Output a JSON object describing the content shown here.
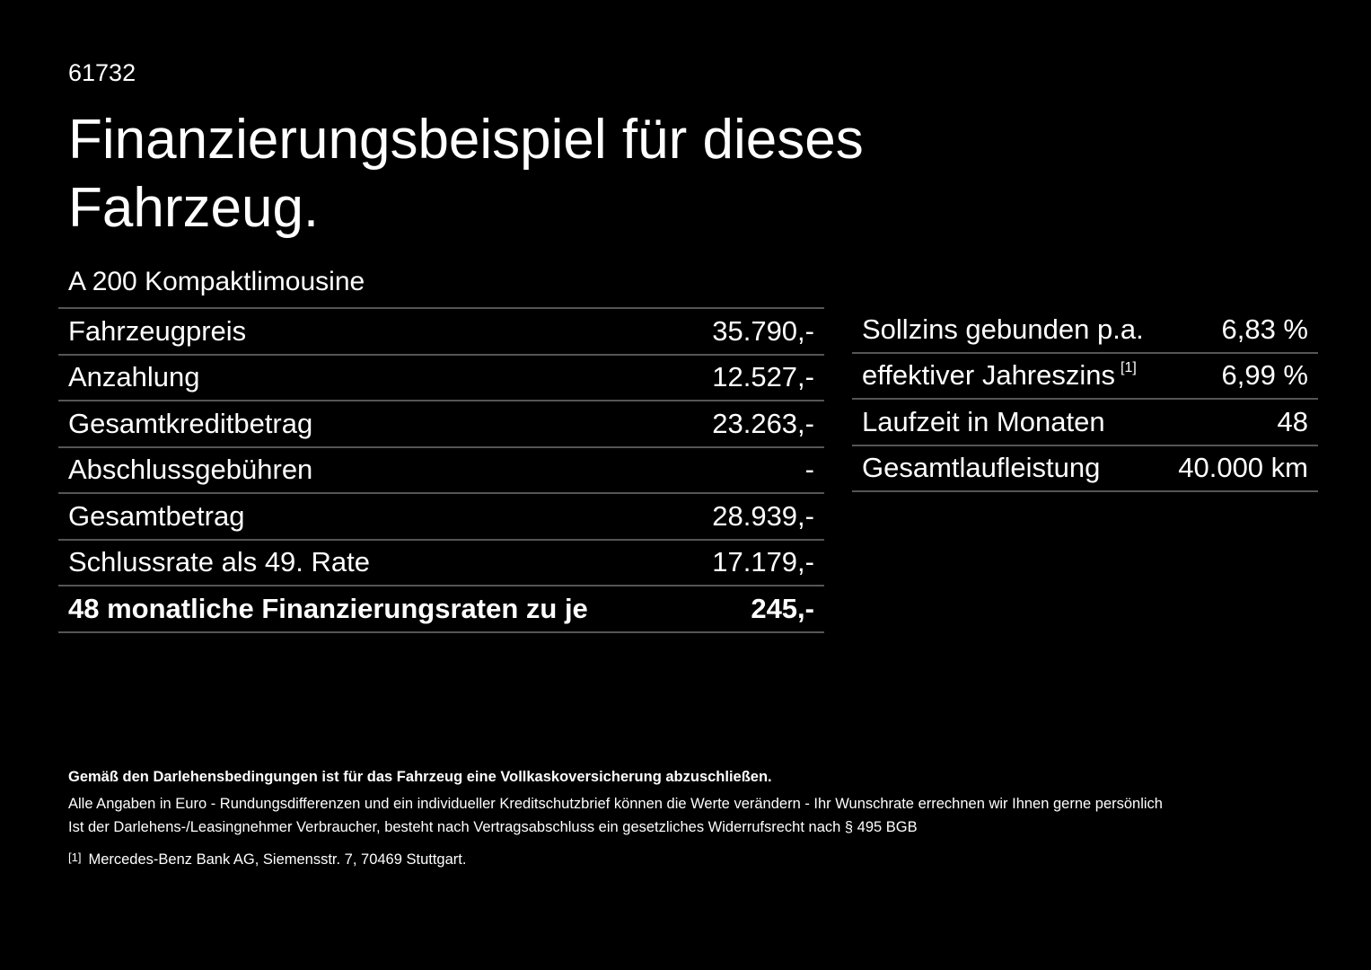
{
  "id": "61732",
  "title": "Finanzierungsbeispiel für dieses Fahrzeug.",
  "subtitle": "A 200 Kompaktlimousine",
  "left_table": {
    "rows": [
      {
        "label": "Fahrzeugpreis",
        "value": "35.790,-"
      },
      {
        "label": "Anzahlung",
        "value": "12.527,-"
      },
      {
        "label": "Gesamtkreditbetrag",
        "value": "23.263,-"
      },
      {
        "label": "Abschlussgebühren",
        "value": "-"
      },
      {
        "label": "Gesamtbetrag",
        "value": "28.939,-"
      },
      {
        "label": "Schlussrate als 49. Rate",
        "value": "17.179,-"
      },
      {
        "label": "48 monatliche Finanzierungsraten zu je",
        "value": "245,-"
      }
    ]
  },
  "right_table": {
    "rows": [
      {
        "label": "Sollzins gebunden p.a.",
        "value": "6,83 %"
      },
      {
        "label": "effektiver Jahreszins",
        "note": "[1]",
        "value": "6,99 %"
      },
      {
        "label": "Laufzeit in Monaten",
        "value": "48"
      },
      {
        "label": "Gesamtlaufleistung",
        "value": "40.000 km"
      }
    ]
  },
  "footer": {
    "bold": "Gemäß den Darlehensbedingungen ist für das Fahrzeug eine Vollkaskoversicherung abzuschließen.",
    "lines": [
      "Alle Angaben in Euro - Rundungsdifferenzen und ein individueller Kreditschutzbrief können die Werte verändern - Ihr Wunschrate errechnen wir Ihnen gerne persönlich",
      "Ist der Darlehens-/Leasingnehmer Verbraucher, besteht nach Vertragsabschluss ein gesetzliches Widerrufsrecht nach § 495 BGB"
    ],
    "footnote": {
      "marker": "[1]",
      "text": "Mercedes-Benz Bank AG, Siemensstr. 7, 70469 Stuttgart."
    }
  }
}
